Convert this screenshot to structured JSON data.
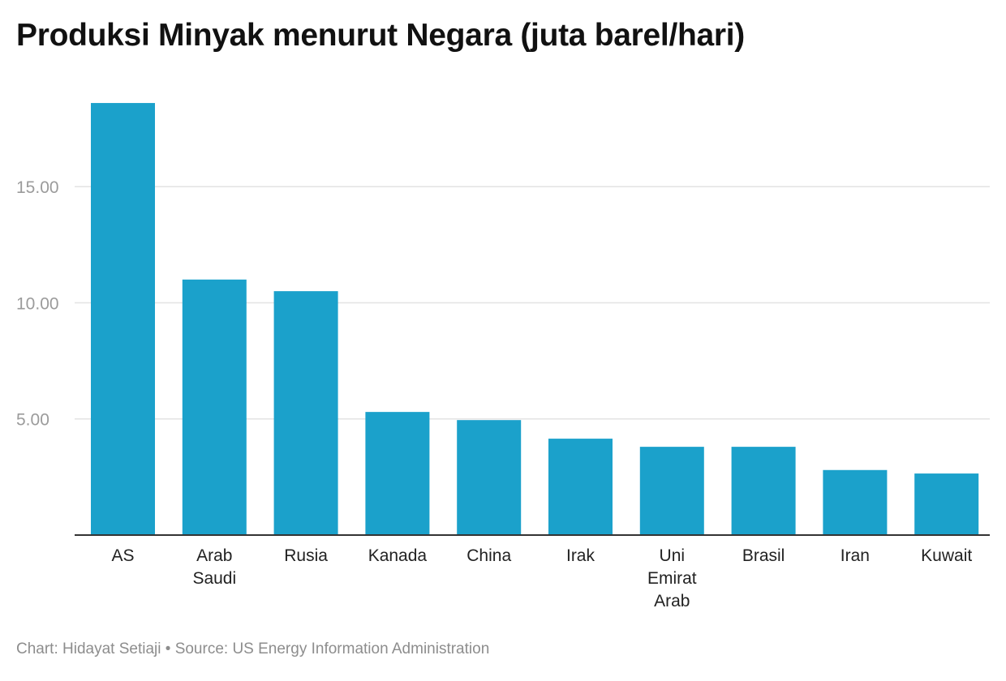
{
  "chart_data": {
    "type": "bar",
    "title": "Produksi Minyak menurut Negara (juta barel/hari)",
    "categories": [
      [
        "AS"
      ],
      [
        "Arab",
        "Saudi"
      ],
      [
        "Rusia"
      ],
      [
        "Kanada"
      ],
      [
        "China"
      ],
      [
        "Irak"
      ],
      [
        "Uni",
        "Emirat",
        "Arab"
      ],
      [
        "Brasil"
      ],
      [
        "Iran"
      ],
      [
        "Kuwait"
      ]
    ],
    "values": [
      18.6,
      11.0,
      10.5,
      5.3,
      4.95,
      4.15,
      3.8,
      3.8,
      2.8,
      2.65
    ],
    "yticks": [
      5,
      10,
      15
    ],
    "ytick_labels": [
      "5.00",
      "10.00",
      "15.00"
    ],
    "ylim": [
      0,
      19.3
    ],
    "xlabel": "",
    "ylabel": "",
    "grid": true,
    "color": "#1ba1cb"
  },
  "footer": {
    "credit": "Chart: Hidayat Setiaji",
    "separator": "•",
    "source": "Source: US Energy Information Administration"
  }
}
